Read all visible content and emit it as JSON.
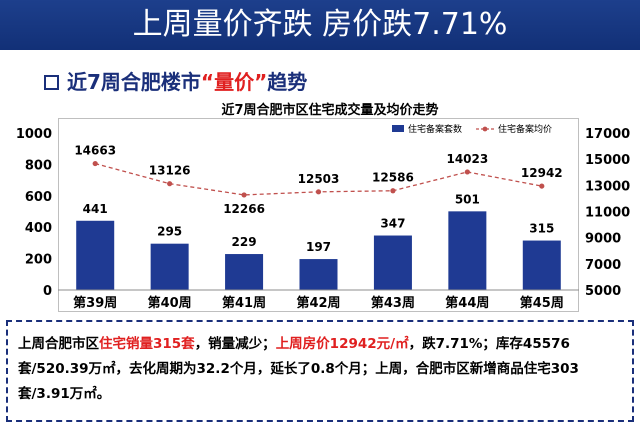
{
  "banner": {
    "title": "上周量价齐跌 房价跌7.71%"
  },
  "section": {
    "prefix": "近7周合肥楼市",
    "highlight": "“量价”",
    "suffix": "趋势"
  },
  "chart_data": {
    "type": "bar",
    "title": "近7周合肥市区住宅成交量及均价走势",
    "categories": [
      "第39周",
      "第40周",
      "第41周",
      "第42周",
      "第43周",
      "第44周",
      "第45周"
    ],
    "series": [
      {
        "name": "住宅备案套数",
        "type": "bar",
        "axis": "left",
        "values": [
          441,
          295,
          229,
          197,
          347,
          501,
          315
        ],
        "color": "#1f3a93"
      },
      {
        "name": "住宅备案均价",
        "type": "line",
        "axis": "right",
        "values": [
          14663,
          13126,
          12266,
          12503,
          12586,
          14023,
          12942
        ],
        "color": "#c0504d"
      }
    ],
    "ylim_left": [
      0,
      1000
    ],
    "yticks_left": [
      0,
      200,
      400,
      600,
      800,
      1000
    ],
    "ylim_right": [
      5000,
      17000
    ],
    "yticks_right": [
      5000,
      7000,
      9000,
      11000,
      13000,
      15000,
      17000
    ],
    "legend": "top-right",
    "grid": false
  },
  "summary": {
    "segments": [
      {
        "text": "上周合肥市区",
        "red": false
      },
      {
        "text": "住宅销量315套",
        "red": true
      },
      {
        "text": "，销量减少；",
        "red": false
      },
      {
        "text": "上周房价12942元/㎡",
        "red": true
      },
      {
        "text": "，跌7.71%；库存45576套/520.39万㎡，去化周期为32.2个月，延长了0.8个月；上周，合肥市区新增商品住宅303套/3.91万㎡。",
        "red": false
      }
    ]
  }
}
